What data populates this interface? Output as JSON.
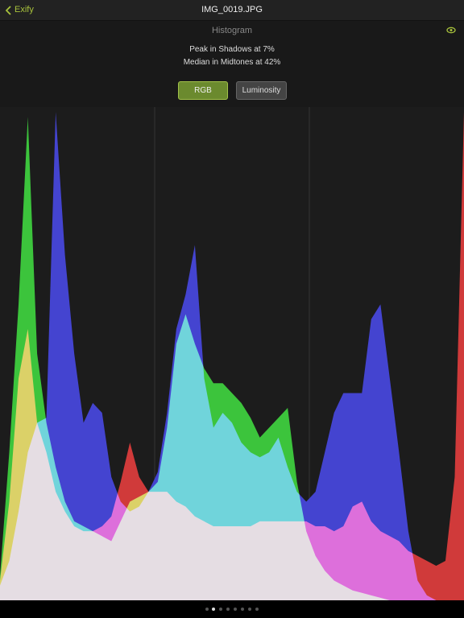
{
  "nav": {
    "back": "Exify",
    "title": "IMG_0019.JPG"
  },
  "header": {
    "title": "Histogram",
    "lines": [
      "Peak in Shadows at 7%",
      "Median in Midtones at 42%"
    ]
  },
  "buttons": [
    "RGB",
    "Luminosity"
  ],
  "histogram": {
    "x": [
      0,
      2,
      4,
      6,
      8,
      10,
      12,
      14,
      16,
      18,
      20,
      22,
      24,
      26,
      28,
      30,
      32,
      34,
      36,
      38,
      40,
      42,
      44,
      46,
      48,
      50,
      52,
      54,
      56,
      58,
      60,
      62,
      64,
      66,
      68,
      70,
      72,
      74,
      76,
      78,
      80,
      82,
      84,
      86,
      88,
      90,
      92,
      94,
      96,
      98,
      100
    ],
    "xlim": [
      0,
      100
    ],
    "ylim": [
      0,
      100
    ],
    "series": [
      {
        "color": "#d03a3a",
        "values": [
          4,
          20,
          45,
          55,
          36,
          30,
          22,
          18,
          15,
          14,
          14,
          15,
          17,
          24,
          32,
          25,
          22,
          22,
          22,
          20,
          19,
          17,
          16,
          15,
          15,
          15,
          15,
          15,
          16,
          16,
          16,
          16,
          16,
          16,
          15,
          15,
          14,
          15,
          19,
          20,
          16,
          14,
          13,
          12,
          10,
          9,
          8,
          7,
          8,
          25,
          99
        ]
      },
      {
        "color": "#3cc43c",
        "values": [
          5,
          30,
          60,
          98,
          50,
          36,
          27,
          20,
          16,
          15,
          14,
          13,
          12,
          16,
          20,
          21,
          22,
          24,
          35,
          52,
          58,
          52,
          47,
          44,
          44,
          42,
          40,
          37,
          33,
          35,
          37,
          39,
          24,
          14,
          9,
          6,
          4,
          3,
          2,
          1.5,
          1,
          0.5,
          0,
          0,
          0,
          0,
          0,
          0,
          0,
          0,
          0
        ]
      },
      {
        "color": "#4444d0",
        "values": [
          3,
          8,
          18,
          30,
          36,
          37,
          99,
          70,
          50,
          36,
          40,
          38,
          25,
          20,
          18,
          19,
          22,
          26,
          38,
          55,
          62,
          72,
          45,
          35,
          38,
          36,
          32,
          30,
          29,
          30,
          33,
          27,
          22,
          20,
          22,
          30,
          38,
          42,
          42,
          42,
          57,
          60,
          45,
          30,
          14,
          4,
          1,
          0,
          0,
          0,
          0
        ]
      }
    ]
  }
}
